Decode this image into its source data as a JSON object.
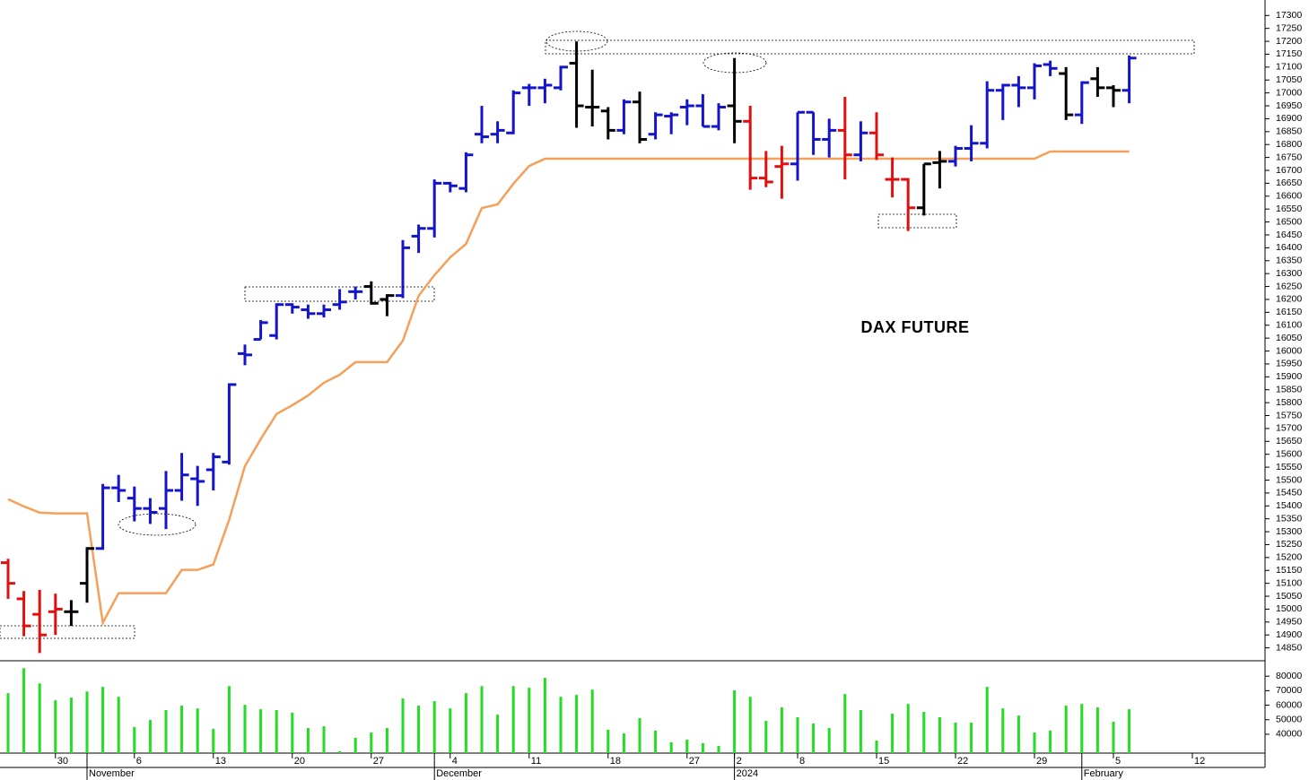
{
  "chart_data": {
    "type": "ohlc",
    "title": "DAX FUTURE",
    "categories": [
      null,
      null,
      null,
      "30",
      null,
      null,
      null,
      null,
      "6",
      null,
      null,
      null,
      null,
      "13",
      null,
      null,
      null,
      null,
      "20",
      null,
      null,
      null,
      null,
      "27",
      null,
      null,
      null,
      null,
      "4",
      null,
      null,
      null,
      null,
      "11",
      null,
      null,
      null,
      null,
      "18",
      null,
      null,
      null,
      null,
      "27",
      null,
      null,
      "2",
      null,
      null,
      null,
      "8",
      null,
      null,
      null,
      null,
      "15",
      null,
      null,
      null,
      null,
      "22",
      null,
      null,
      null,
      null,
      "29",
      null,
      null,
      null,
      null,
      "5",
      null,
      null,
      null,
      null,
      "12"
    ],
    "month_categories": [
      null,
      null,
      null,
      null,
      null,
      "November",
      null,
      null,
      null,
      null,
      null,
      null,
      null,
      null,
      null,
      null,
      null,
      null,
      null,
      null,
      null,
      null,
      null,
      null,
      null,
      null,
      null,
      "December",
      null,
      null,
      null,
      null,
      null,
      null,
      null,
      null,
      null,
      null,
      null,
      null,
      null,
      null,
      null,
      null,
      null,
      null,
      "2024",
      null,
      null,
      null,
      null,
      null,
      null,
      null,
      null,
      null,
      null,
      null,
      null,
      null,
      null,
      null,
      null,
      null,
      null,
      null,
      null,
      null,
      "February",
      null,
      null,
      null,
      null,
      null,
      null,
      null
    ],
    "open": [
      15180,
      15040,
      14980,
      14990,
      14990,
      15100,
      15235,
      15470,
      15430,
      15390,
      15390,
      15460,
      15505,
      15540,
      15570,
      15990,
      16045,
      16060,
      16180,
      16160,
      16145,
      16180,
      16230,
      16250,
      16200,
      16215,
      16445,
      16475,
      16650,
      16630,
      16840,
      16840,
      16845,
      17020,
      17020,
      17020,
      17115,
      16945,
      16930,
      16855,
      16965,
      16840,
      16910,
      16945,
      16950,
      16870,
      16950,
      16890,
      16670,
      16715,
      16725,
      16925,
      16820,
      16855,
      16760,
      16845,
      16665,
      16665,
      16555,
      16730,
      16735,
      16785,
      16805,
      17010,
      17030,
      17020,
      17110,
      17075,
      16915,
      17055,
      17020,
      17010,
      null,
      null,
      null,
      null
    ],
    "high": [
      15195,
      15070,
      15075,
      15060,
      15035,
      15240,
      15485,
      15520,
      15475,
      15430,
      15535,
      15605,
      15555,
      15605,
      15875,
      16025,
      16120,
      16185,
      16185,
      16180,
      16180,
      16240,
      16250,
      16270,
      16220,
      16430,
      16490,
      16665,
      16655,
      16770,
      16950,
      16890,
      17010,
      17035,
      17055,
      17105,
      17200,
      17090,
      16945,
      16975,
      17005,
      16925,
      16925,
      16975,
      16995,
      16960,
      17135,
      16950,
      16775,
      16795,
      16925,
      16925,
      16900,
      16985,
      16890,
      16925,
      16750,
      16670,
      16725,
      16775,
      16795,
      16875,
      17045,
      17035,
      17065,
      17115,
      17125,
      17100,
      17045,
      17100,
      17030,
      17145,
      null,
      null,
      null,
      null
    ],
    "low": [
      15040,
      14895,
      14830,
      14900,
      14935,
      15025,
      15230,
      15415,
      15340,
      15330,
      15310,
      15420,
      15400,
      15460,
      15560,
      15945,
      16045,
      16045,
      16145,
      16125,
      16130,
      16160,
      16200,
      16180,
      16135,
      16205,
      16380,
      16440,
      16615,
      16615,
      16805,
      16805,
      16840,
      16950,
      16960,
      17010,
      16865,
      16870,
      16820,
      16840,
      16805,
      16820,
      16840,
      16875,
      16870,
      16855,
      16805,
      16625,
      16635,
      16590,
      16660,
      16760,
      16750,
      16665,
      16735,
      16740,
      16595,
      16465,
      16525,
      16630,
      16715,
      16735,
      16785,
      16895,
      16945,
      16975,
      17065,
      16895,
      16880,
      16985,
      16945,
      16960,
      null,
      null,
      null,
      null
    ],
    "close": [
      15100,
      14935,
      14900,
      15000,
      14990,
      15235,
      15470,
      15460,
      15390,
      15375,
      15460,
      15520,
      15495,
      15590,
      15870,
      15985,
      16110,
      16180,
      16170,
      16145,
      16160,
      16190,
      16230,
      16185,
      16215,
      16400,
      16475,
      16650,
      16640,
      16760,
      16830,
      16855,
      17000,
      17020,
      17030,
      17100,
      16950,
      16945,
      16855,
      16965,
      16820,
      16915,
      16915,
      16950,
      16870,
      16945,
      16890,
      16670,
      16655,
      16725,
      16925,
      16820,
      16855,
      16760,
      16845,
      16760,
      16665,
      16555,
      16725,
      16735,
      16785,
      16805,
      17010,
      17030,
      17020,
      17105,
      17095,
      16915,
      17040,
      17020,
      17010,
      17135,
      null,
      null,
      null,
      null
    ],
    "bar_colors": [
      "#e01010",
      "#e01010",
      "#e01010",
      "#e01010",
      "#000000",
      "#000000",
      "#1414c8",
      "#1414c8",
      "#1414c8",
      "#1414c8",
      "#1414c8",
      "#1414c8",
      "#1414c8",
      "#1414c8",
      "#1414c8",
      "#1414c8",
      "#1414c8",
      "#1414c8",
      "#1414c8",
      "#1414c8",
      "#1414c8",
      "#1414c8",
      "#1414c8",
      "#000000",
      "#000000",
      "#1414c8",
      "#1414c8",
      "#1414c8",
      "#1414c8",
      "#1414c8",
      "#1414c8",
      "#1414c8",
      "#1414c8",
      "#1414c8",
      "#1414c8",
      "#1414c8",
      "#000000",
      "#000000",
      "#000000",
      "#1414c8",
      "#000000",
      "#1414c8",
      "#1414c8",
      "#1414c8",
      "#1414c8",
      "#1414c8",
      "#000000",
      "#e01010",
      "#e01010",
      "#e01010",
      "#1414c8",
      "#1414c8",
      "#1414c8",
      "#e01010",
      "#1414c8",
      "#e01010",
      "#e01010",
      "#e01010",
      "#000000",
      "#000000",
      "#1414c8",
      "#1414c8",
      "#1414c8",
      "#1414c8",
      "#1414c8",
      "#1414c8",
      "#1414c8",
      "#000000",
      "#1414c8",
      "#000000",
      "#000000",
      "#1414c8",
      null,
      null,
      null,
      null
    ],
    "line": {
      "color": "#f5a05a",
      "values": [
        15426,
        15398,
        15374,
        15371,
        15371,
        15371,
        14947,
        15062,
        15062,
        15062,
        15062,
        15152,
        15152,
        15173,
        15346,
        15554,
        15659,
        15756,
        15790,
        15828,
        15877,
        15908,
        15957,
        15957,
        15957,
        16040,
        16214,
        16294,
        16363,
        16415,
        16554,
        16568,
        16648,
        16717,
        16745,
        16745,
        16745,
        16745,
        16745,
        16745,
        16745,
        16745,
        16745,
        16745,
        16745,
        16745,
        16745,
        16745,
        16745,
        16745,
        16745,
        16745,
        16745,
        16745,
        16745,
        16745,
        16745,
        16745,
        16745,
        16745,
        16745,
        16745,
        16745,
        16745,
        16745,
        16745,
        16773,
        16773,
        16773,
        16773,
        16773,
        16773,
        null,
        null,
        null,
        null
      ]
    },
    "ylim": [
      14800,
      17360
    ],
    "yticks": [
      17300,
      17250,
      17200,
      17150,
      17100,
      17050,
      17000,
      16950,
      16900,
      16850,
      16800,
      16750,
      16700,
      16650,
      16600,
      16550,
      16500,
      16450,
      16400,
      16350,
      16300,
      16250,
      16200,
      16150,
      16100,
      16050,
      16000,
      15950,
      15900,
      15850,
      15800,
      15750,
      15700,
      15650,
      15600,
      15550,
      15500,
      15450,
      15400,
      15350,
      15300,
      15250,
      15200,
      15150,
      15100,
      15050,
      15000,
      14950,
      14900,
      14850
    ],
    "grid": false,
    "volume": {
      "color": "#22dd22",
      "values": [
        68300,
        85500,
        75000,
        63400,
        65200,
        69500,
        72600,
        65800,
        44900,
        49800,
        56600,
        59700,
        57800,
        43700,
        73200,
        60300,
        57200,
        56600,
        54800,
        44300,
        45500,
        28300,
        37500,
        41200,
        44300,
        64600,
        59700,
        62800,
        57800,
        68300,
        73200,
        53500,
        73200,
        72000,
        78800,
        65800,
        67100,
        70800,
        43100,
        40600,
        51100,
        42500,
        34500,
        36300,
        33800,
        32000,
        70200,
        65800,
        49200,
        58500,
        51700,
        47400,
        44300,
        67700,
        56600,
        35700,
        54200,
        60900,
        55400,
        51700,
        48000,
        48000,
        72600,
        57800,
        52900,
        41200,
        42500,
        59700,
        60900,
        58500,
        48600,
        57200,
        null,
        null,
        null,
        null
      ],
      "ylim": [
        27000,
        90000
      ],
      "yticks": [
        80000,
        70000,
        60000,
        50000,
        40000
      ]
    }
  }
}
